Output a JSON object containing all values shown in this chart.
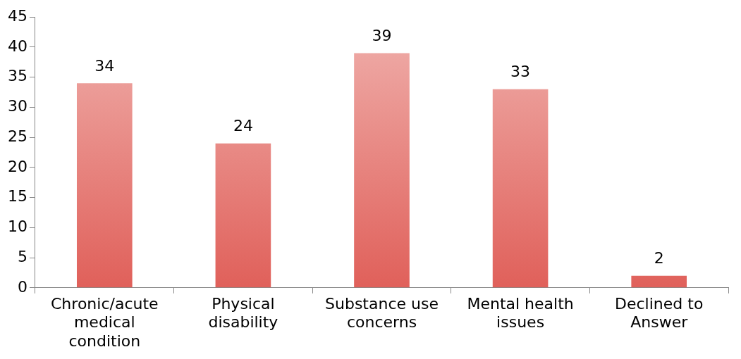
{
  "chart_data": {
    "type": "bar",
    "categories": [
      "Chronic/acute medical condition",
      "Physical disability",
      "Substance use concerns",
      "Mental health issues",
      "Declined to Answer"
    ],
    "values": [
      34,
      24,
      39,
      33,
      2
    ],
    "color": "#e0605a",
    "ylim": [
      0,
      45
    ],
    "yticks": [
      0,
      5,
      10,
      15,
      20,
      25,
      30,
      35,
      40,
      45
    ],
    "grid": false,
    "legend": false,
    "data_labels": true
  }
}
